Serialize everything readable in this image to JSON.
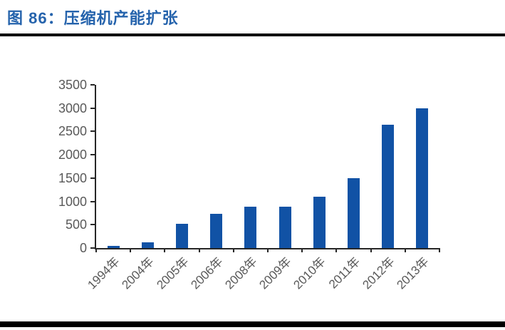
{
  "header": {
    "title": "图 86：压缩机产能扩张"
  },
  "colors": {
    "title_blue": "#2563AC",
    "bar_blue": "#1152A5",
    "axis_line": "#262626",
    "tick_label_gray": "#595959",
    "rule_black": "#000000"
  },
  "chart_data": {
    "type": "bar",
    "title": "图 86：压缩机产能扩张",
    "categories": [
      "1994年",
      "2004年",
      "2005年",
      "2006年",
      "2008年",
      "2009年",
      "2010年",
      "2011年",
      "2012年",
      "2013年"
    ],
    "values": [
      50,
      120,
      520,
      730,
      890,
      890,
      1100,
      1500,
      2650,
      3000
    ],
    "xlabel": "",
    "ylabel": "",
    "ylim": [
      0,
      3500
    ],
    "yticks": [
      0,
      500,
      1000,
      1500,
      2000,
      2500,
      3000,
      3500
    ],
    "grid": false,
    "legend": "none",
    "bar_color": "#1152A5"
  }
}
